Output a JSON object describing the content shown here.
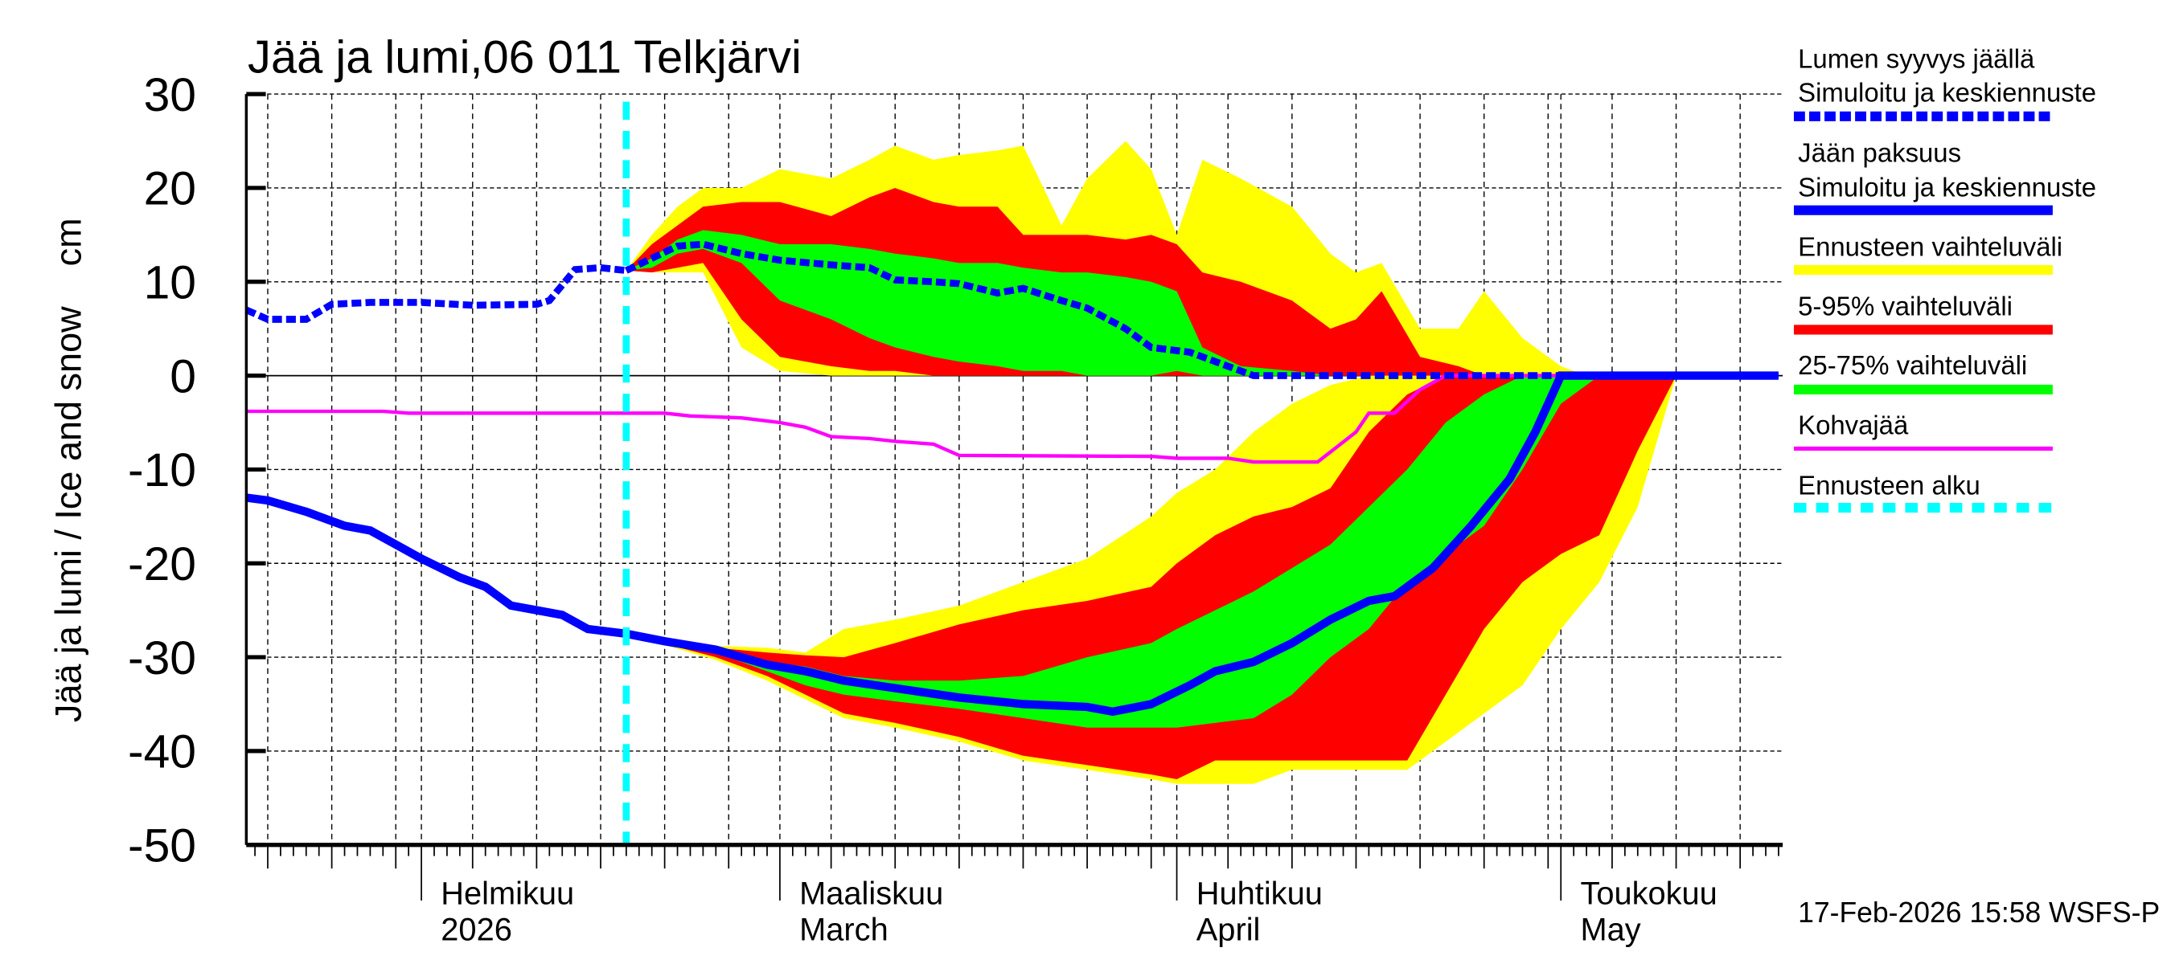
{
  "chart_data": {
    "type": "area",
    "title": "Jää ja lumi,06 011 Telkjärvi",
    "ylabel": "Jää ja lumi / Ice and snow    cm",
    "xlabel": "",
    "ylim": [
      -50,
      30
    ],
    "xlim": [
      "2026-01-18",
      "2026-05-18"
    ],
    "yticks": [
      "30",
      "20",
      "10",
      "0",
      "-10",
      "-20",
      "-30",
      "-40",
      "-50"
    ],
    "grid": true,
    "legend_placement": "right",
    "forecast_start": "2026-02-17",
    "months": [
      {
        "date": "2026-02-01",
        "label1": "Helmikuu",
        "label2": "2026"
      },
      {
        "date": "2026-03-01",
        "label1": "Maaliskuu",
        "label2": "March"
      },
      {
        "date": "2026-04-01",
        "label1": "Huhtikuu",
        "label2": "April"
      },
      {
        "date": "2026-05-01",
        "label1": "Toukokuu",
        "label2": "May"
      }
    ],
    "colors": {
      "snow": "#0000ff",
      "ice": "#0000ff",
      "range": "#ffff00",
      "p5_95": "#ff0000",
      "p25_75": "#00ff00",
      "slush": "#ff00ff",
      "forecast_start": "#00ffff"
    },
    "snow": {
      "observed": {
        "dates": [
          "2026-01-18",
          "2026-01-20",
          "2026-01-23",
          "2026-01-25",
          "2026-01-28",
          "2026-02-01",
          "2026-02-05",
          "2026-02-10",
          "2026-02-11",
          "2026-02-13",
          "2026-02-15",
          "2026-02-17"
        ],
        "values": [
          7,
          6,
          6,
          7.6,
          7.8,
          7.8,
          7.5,
          7.6,
          8,
          11.3,
          11.5,
          11.2
        ]
      },
      "forecast_median": {
        "dates": [
          "2026-02-17",
          "2026-02-19",
          "2026-02-21",
          "2026-02-23",
          "2026-02-26",
          "2026-03-01",
          "2026-03-05",
          "2026-03-08",
          "2026-03-10",
          "2026-03-13",
          "2026-03-15",
          "2026-03-18",
          "2026-03-20",
          "2026-03-23",
          "2026-03-25",
          "2026-03-28",
          "2026-03-30",
          "2026-04-02",
          "2026-04-05",
          "2026-04-07",
          "2026-05-18"
        ],
        "values": [
          11.2,
          12.5,
          13.8,
          14,
          13,
          12.3,
          11.8,
          11.5,
          10.2,
          10,
          9.8,
          8.8,
          9.3,
          8,
          7.2,
          5,
          3,
          2.5,
          1,
          0,
          0
        ]
      },
      "bands": {
        "dates": [
          "2026-02-17",
          "2026-02-19",
          "2026-02-21",
          "2026-02-23",
          "2026-02-26",
          "2026-03-01",
          "2026-03-05",
          "2026-03-08",
          "2026-03-10",
          "2026-03-13",
          "2026-03-15",
          "2026-03-18",
          "2026-03-20",
          "2026-03-23",
          "2026-03-25",
          "2026-03-28",
          "2026-03-30",
          "2026-04-01",
          "2026-04-03",
          "2026-04-06",
          "2026-04-10",
          "2026-04-13",
          "2026-04-15",
          "2026-04-17",
          "2026-04-20",
          "2026-04-23",
          "2026-04-25",
          "2026-04-28",
          "2026-05-01",
          "2026-05-03"
        ],
        "max": [
          11.2,
          15,
          18,
          20,
          20,
          22,
          21,
          23,
          24.5,
          23,
          23.5,
          24,
          24.5,
          16,
          21,
          25,
          22,
          15,
          23,
          21,
          18,
          13,
          11,
          12,
          5,
          5,
          9,
          4,
          1,
          0
        ],
        "p95": [
          11.2,
          14,
          16,
          18,
          18.5,
          18.5,
          17,
          19,
          20,
          18.5,
          18,
          18,
          15,
          15,
          15,
          14.5,
          15,
          14,
          11,
          10,
          8,
          5,
          6,
          9,
          2,
          1,
          0,
          0,
          0,
          0
        ],
        "p75": [
          11.2,
          12.5,
          14.5,
          15.5,
          15,
          14,
          14,
          13.5,
          13,
          12.5,
          12,
          12,
          11.5,
          11,
          11,
          10.5,
          10,
          9,
          3,
          1,
          0.5,
          0,
          0,
          0,
          0,
          0,
          0,
          0,
          0,
          0
        ],
        "p25": [
          11.2,
          11.5,
          13,
          13.5,
          12,
          8,
          6,
          4,
          3,
          2,
          1.5,
          1,
          0.5,
          0.5,
          0,
          0,
          0,
          0.5,
          0,
          0,
          0,
          0,
          0,
          0,
          0,
          0,
          0,
          0,
          0,
          0
        ],
        "p5": [
          11.2,
          11,
          11.5,
          12,
          6,
          2,
          1,
          0.5,
          0.5,
          0,
          0,
          0,
          0,
          0,
          0,
          0,
          0,
          0,
          0,
          0,
          0,
          0,
          0,
          0,
          0,
          0,
          0,
          0,
          0,
          0
        ],
        "min": [
          11.2,
          11,
          11,
          11,
          3,
          0.5,
          0,
          0,
          0,
          0,
          0,
          0,
          0,
          0,
          0,
          0,
          0,
          0,
          0,
          0,
          0,
          0,
          0,
          0,
          0,
          0,
          0,
          0,
          0,
          0
        ]
      }
    },
    "ice": {
      "observed": {
        "dates": [
          "2026-01-18",
          "2026-01-20",
          "2026-01-23",
          "2026-01-26",
          "2026-01-28",
          "2026-02-01",
          "2026-02-04",
          "2026-02-06",
          "2026-02-08",
          "2026-02-10",
          "2026-02-12",
          "2026-02-14",
          "2026-02-17"
        ],
        "values": [
          -13,
          -13.3,
          -14.5,
          -16,
          -16.5,
          -19.5,
          -21.5,
          -22.5,
          -24.5,
          -25,
          -25.5,
          -27,
          -27.5
        ]
      },
      "forecast_median": {
        "dates": [
          "2026-02-17",
          "2026-02-20",
          "2026-02-24",
          "2026-02-28",
          "2026-03-03",
          "2026-03-06",
          "2026-03-10",
          "2026-03-15",
          "2026-03-20",
          "2026-03-25",
          "2026-03-27",
          "2026-03-30",
          "2026-04-02",
          "2026-04-04",
          "2026-04-07",
          "2026-04-10",
          "2026-04-13",
          "2026-04-16",
          "2026-04-18",
          "2026-04-21",
          "2026-04-24",
          "2026-04-27",
          "2026-04-29",
          "2026-05-01",
          "2026-05-18"
        ],
        "values": [
          -27.5,
          -28.3,
          -29.2,
          -30.8,
          -31.5,
          -32.5,
          -33.3,
          -34.3,
          -35,
          -35.3,
          -35.8,
          -35,
          -33,
          -31.5,
          -30.5,
          -28.5,
          -26,
          -24,
          -23.5,
          -20.5,
          -16,
          -11,
          -6,
          0,
          0
        ]
      },
      "bands": {
        "dates": [
          "2026-02-17",
          "2026-02-24",
          "2026-02-28",
          "2026-03-03",
          "2026-03-06",
          "2026-03-10",
          "2026-03-15",
          "2026-03-20",
          "2026-03-25",
          "2026-03-30",
          "2026-04-01",
          "2026-04-04",
          "2026-04-07",
          "2026-04-10",
          "2026-04-13",
          "2026-04-16",
          "2026-04-19",
          "2026-04-22",
          "2026-04-25",
          "2026-04-28",
          "2026-05-01",
          "2026-05-04",
          "2026-05-07",
          "2026-05-10"
        ],
        "max": [
          -27.5,
          -28.8,
          -29,
          -29.5,
          -27,
          -26,
          -24.5,
          -22,
          -19.5,
          -15,
          -12.5,
          -10,
          -6,
          -3,
          -1,
          0,
          0,
          0,
          0,
          0,
          0,
          0,
          0,
          0
        ],
        "p95": [
          -27.5,
          -29,
          -29.5,
          -29.8,
          -30,
          -28.5,
          -26.5,
          -25,
          -24,
          -22.5,
          -20,
          -17,
          -15,
          -14,
          -12,
          -6,
          -2,
          0,
          0,
          0,
          0,
          0,
          0,
          0
        ],
        "p75": [
          -27.5,
          -29,
          -30.5,
          -31,
          -32,
          -32.5,
          -32.5,
          -32,
          -30,
          -28.5,
          -27,
          -25,
          -23,
          -20.5,
          -18,
          -14,
          -10,
          -5,
          -2,
          0,
          0,
          0,
          0,
          0
        ],
        "p25": [
          -27.5,
          -29.5,
          -31.5,
          -33,
          -34,
          -34.7,
          -35.5,
          -36.5,
          -37.5,
          -37.5,
          -37.5,
          -37,
          -36.5,
          -34,
          -30,
          -27,
          -22,
          -19,
          -16,
          -10,
          -3,
          0,
          0,
          0
        ],
        "p5": [
          -27.5,
          -30,
          -32,
          -34,
          -36,
          -37,
          -38.5,
          -40.5,
          -41.5,
          -42.5,
          -43,
          -41,
          -41,
          -41,
          -41,
          -41,
          -41,
          -34,
          -27,
          -22,
          -19,
          -17,
          -8,
          0
        ],
        "min": [
          -27.5,
          -30.3,
          -32.5,
          -34.5,
          -36.5,
          -37.5,
          -39,
          -41,
          -42,
          -43,
          -43.5,
          -43.5,
          -43.5,
          -42,
          -42,
          -42,
          -42,
          -39,
          -36,
          -33,
          -27,
          -22,
          -14,
          0
        ]
      }
    },
    "slush": {
      "dates": [
        "2026-01-18",
        "2026-01-29",
        "2026-01-31",
        "2026-02-20",
        "2026-02-22",
        "2026-02-26",
        "2026-03-01",
        "2026-03-03",
        "2026-03-05",
        "2026-03-08",
        "2026-03-10",
        "2026-03-13",
        "2026-03-15",
        "2026-03-30",
        "2026-04-01",
        "2026-04-05",
        "2026-04-07",
        "2026-04-12",
        "2026-04-15",
        "2026-04-16",
        "2026-04-18",
        "2026-04-20",
        "2026-04-22",
        "2026-05-18"
      ],
      "values": [
        -3.8,
        -3.8,
        -4,
        -4,
        -4.3,
        -4.5,
        -5,
        -5.5,
        -6.5,
        -6.7,
        -7,
        -7.3,
        -8.5,
        -8.6,
        -8.8,
        -8.8,
        -9.2,
        -9.2,
        -6,
        -4,
        -4,
        -1.5,
        0,
        0
      ]
    },
    "legend": [
      {
        "key": "snow",
        "line1": "Lumen syyvys jäällä",
        "line2": "Simuloitu ja keskiennuste",
        "style": "dotted"
      },
      {
        "key": "ice",
        "line1": "Jään paksuus",
        "line2": "Simuloitu ja keskiennuste",
        "style": "solid"
      },
      {
        "key": "range",
        "line1": "Ennusteen vaihteluväli",
        "style": "solid"
      },
      {
        "key": "p5_95",
        "line1": "5-95% vaihteluväli",
        "style": "solid"
      },
      {
        "key": "p25_75",
        "line1": "25-75% vaihteluväli",
        "style": "solid"
      },
      {
        "key": "slush",
        "line1": "Kohvajää",
        "style": "thin"
      },
      {
        "key": "forecast_start",
        "line1": "Ennusteen alku",
        "style": "dashed"
      }
    ],
    "timestamp": "17-Feb-2026 15:58 WSFS-P"
  }
}
